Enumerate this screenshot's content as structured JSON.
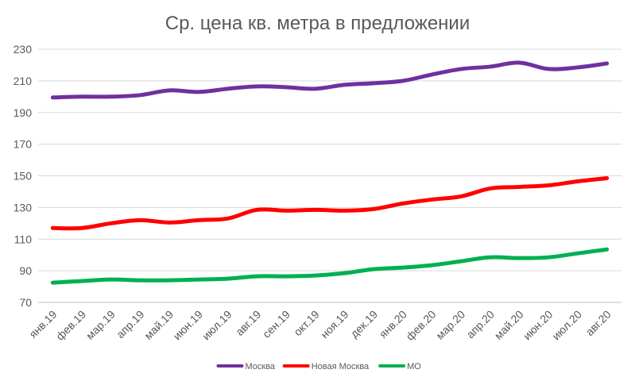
{
  "chart_data": {
    "type": "line",
    "title": "Ср. цена кв. метра в предложении",
    "xlabel": "",
    "ylabel": "",
    "ylim": [
      70,
      230
    ],
    "yticks": [
      70,
      90,
      110,
      130,
      150,
      170,
      190,
      210,
      230
    ],
    "grid": true,
    "legend": "bottom",
    "categories": [
      "янв.19",
      "фев.19",
      "мар.19",
      "апр.19",
      "май.19",
      "июн.19",
      "июл.19",
      "авг.19",
      "сен.19",
      "окт.19",
      "ноя.19",
      "дек.19",
      "янв.20",
      "фев.20",
      "мар.20",
      "апр.20",
      "май.20",
      "июн.20",
      "июл.20",
      "авг.20"
    ],
    "series": [
      {
        "name": "Москва",
        "color": "#7030a0",
        "values": [
          199.5,
          200,
          200,
          201,
          204,
          203,
          205,
          206.5,
          206,
          205,
          207.5,
          208.5,
          210,
          214,
          217.5,
          219,
          221.5,
          217.5,
          218.5,
          221
        ]
      },
      {
        "name": "Новая Москва",
        "color": "#ff0000",
        "values": [
          117,
          117,
          120,
          122,
          120.5,
          122,
          123,
          128.5,
          128,
          128.5,
          128,
          129,
          132.5,
          135,
          137,
          142,
          143,
          144,
          146.5,
          148.5
        ]
      },
      {
        "name": "МО",
        "color": "#00b050",
        "values": [
          82.5,
          83.5,
          84.5,
          84,
          84,
          84.5,
          85,
          86.5,
          86.5,
          87,
          88.5,
          91,
          92,
          93.5,
          96,
          98.5,
          98,
          98.5,
          101,
          103.5
        ]
      }
    ]
  }
}
